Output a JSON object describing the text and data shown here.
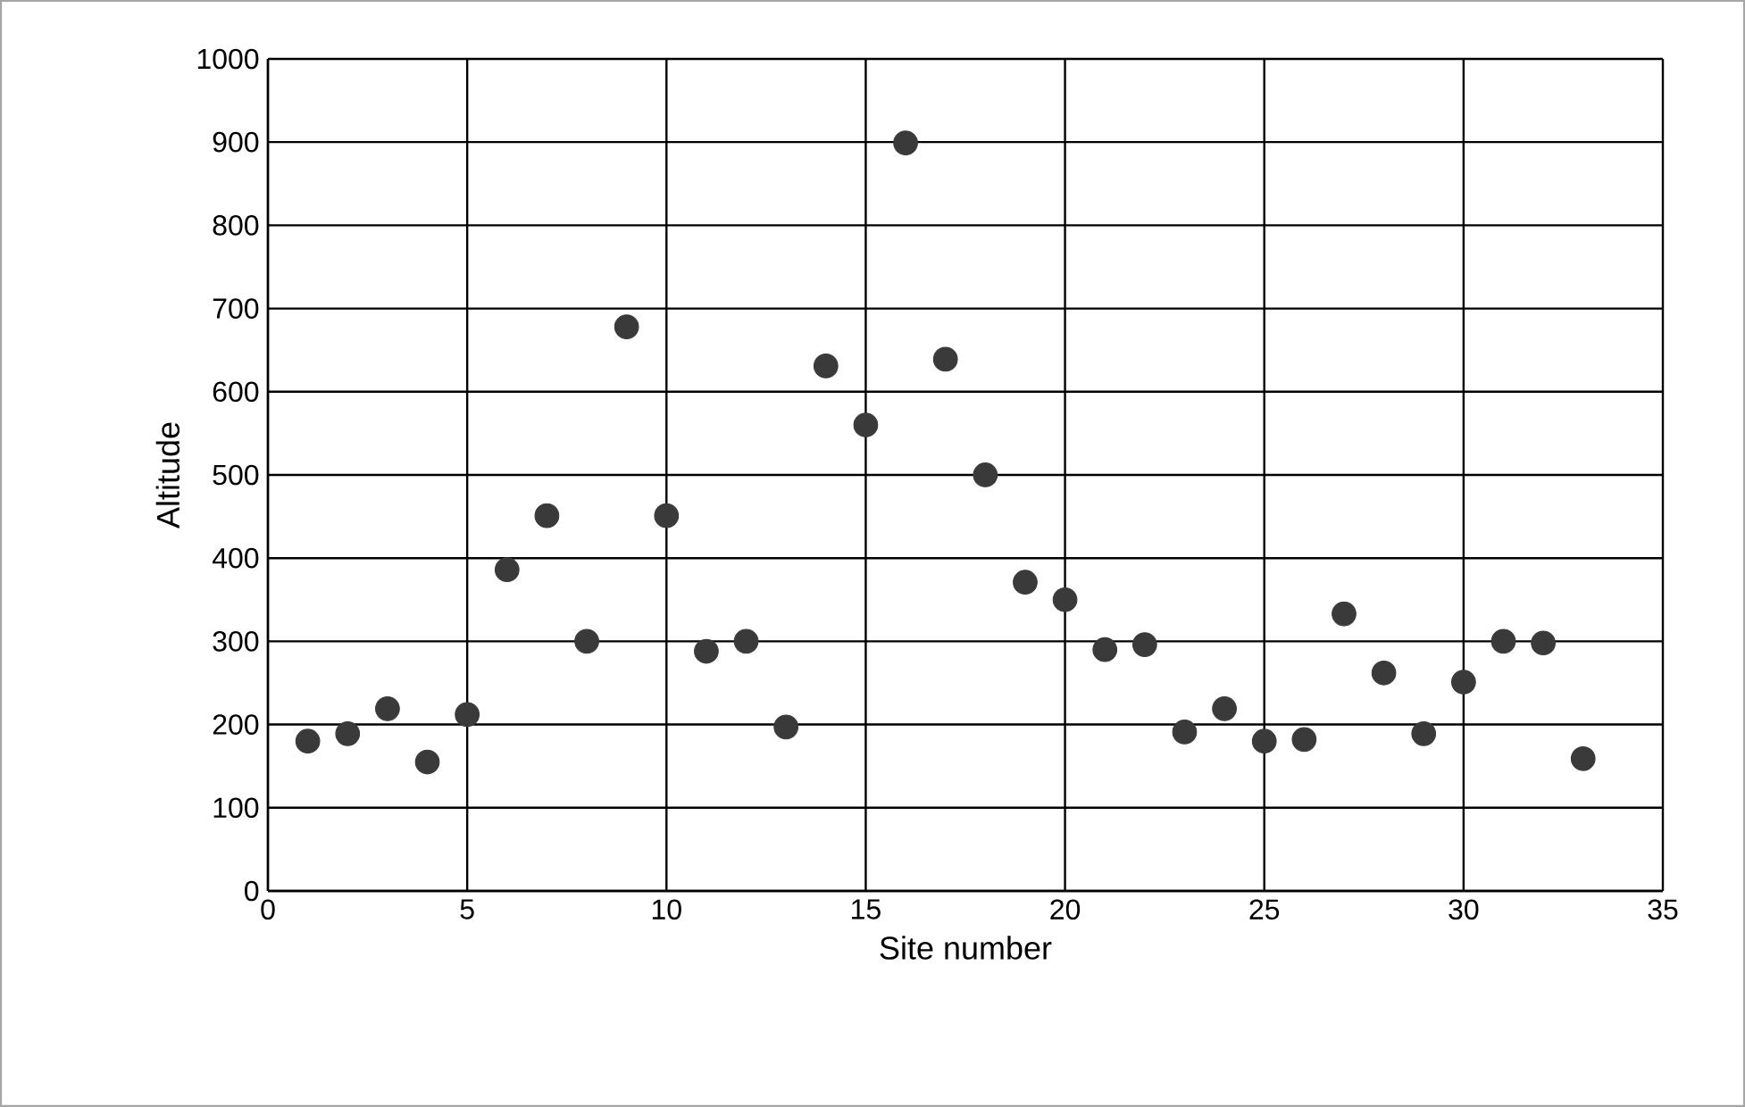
{
  "chart_data": {
    "type": "scatter",
    "xlabel": "Site number",
    "ylabel": "Altitude",
    "x": [
      1,
      2,
      3,
      4,
      5,
      6,
      7,
      8,
      9,
      10,
      11,
      12,
      13,
      14,
      15,
      16,
      17,
      18,
      19,
      20,
      21,
      22,
      23,
      24,
      25,
      26,
      27,
      28,
      29,
      30,
      31,
      32,
      33
    ],
    "values": [
      180,
      189,
      219,
      155,
      212,
      386,
      451,
      300,
      678,
      451,
      288,
      300,
      197,
      631,
      560,
      899,
      639,
      500,
      371,
      350,
      290,
      296,
      191,
      219,
      180,
      182,
      333,
      262,
      189,
      251,
      300,
      298,
      159
    ],
    "color": "#3a3a3a",
    "marker": "circle",
    "xlim": [
      0,
      35
    ],
    "xticks": [
      0,
      5,
      10,
      15,
      20,
      25,
      30,
      35
    ],
    "ylim": [
      0,
      1000
    ],
    "yticks": [
      0,
      100,
      200,
      300,
      400,
      500,
      600,
      700,
      800,
      900,
      1000
    ],
    "grid": true
  }
}
